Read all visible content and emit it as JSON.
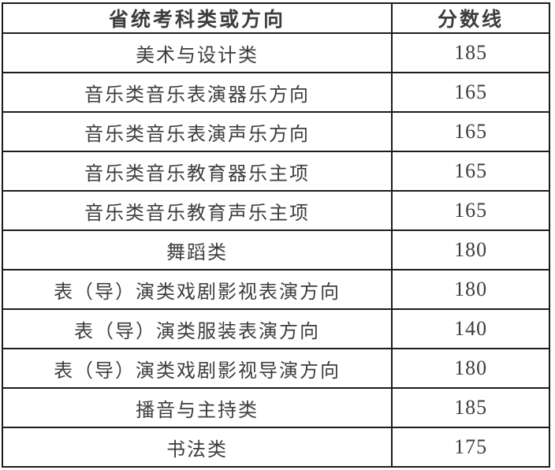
{
  "chart_data": {
    "type": "table",
    "columns": [
      "省统考科类或方向",
      "分数线"
    ],
    "rows": [
      [
        "美术与设计类",
        185
      ],
      [
        "音乐类音乐表演器乐方向",
        165
      ],
      [
        "音乐类音乐表演声乐方向",
        165
      ],
      [
        "音乐类音乐教育器乐主项",
        165
      ],
      [
        "音乐类音乐教育声乐主项",
        165
      ],
      [
        "舞蹈类",
        180
      ],
      [
        "表（导）演类戏剧影视表演方向",
        180
      ],
      [
        "表（导）演类服装表演方向",
        140
      ],
      [
        "表（导）演类戏剧影视导演方向",
        180
      ],
      [
        "播音与主持类",
        185
      ],
      [
        "书法类",
        175
      ]
    ],
    "layout": {
      "grid": "all-borders",
      "header_bold": true,
      "text_align": "center"
    }
  },
  "colors": {
    "border": "#1c1c1c",
    "header_text": "#2e2e2e",
    "body_text": "#3d3d3d",
    "background": "#ffffff"
  }
}
